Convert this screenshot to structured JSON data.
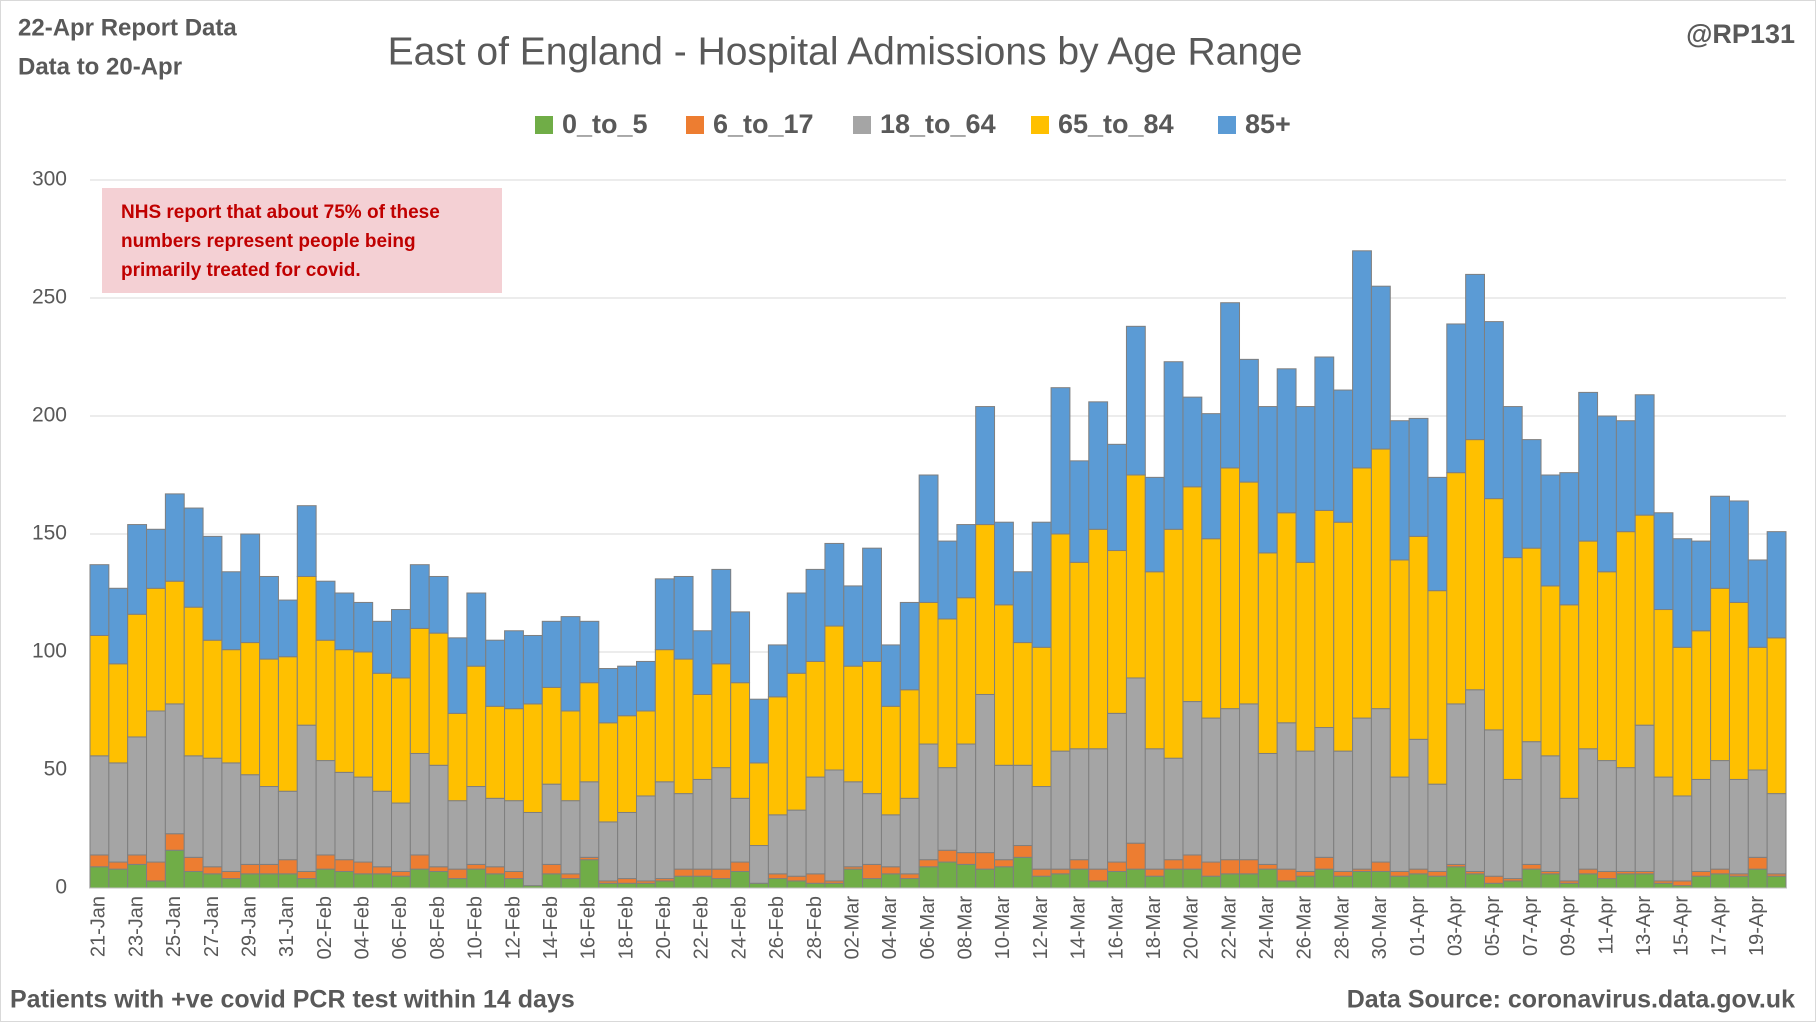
{
  "chart_data": {
    "type": "bar",
    "stacked": true,
    "title": "East of England - Hospital Admissions by Age Range",
    "report_date": "22-Apr Report Data",
    "data_to": "Data to 20-Apr",
    "author": "@RP131",
    "annotation": [
      "NHS report that about 75% of these",
      "numbers represent people being",
      "primarily treated for covid."
    ],
    "footnote": "Patients with  +ve covid PCR test within 14 days",
    "source": "Data Source: coronavirus.data.gov.uk",
    "categories": [
      "21-Jan",
      null,
      "23-Jan",
      null,
      "25-Jan",
      null,
      "27-Jan",
      null,
      "29-Jan",
      null,
      "31-Jan",
      null,
      "02-Feb",
      null,
      "04-Feb",
      null,
      "06-Feb",
      null,
      "08-Feb",
      null,
      "10-Feb",
      null,
      "12-Feb",
      null,
      "14-Feb",
      null,
      "16-Feb",
      null,
      "18-Feb",
      null,
      "20-Feb",
      null,
      "22-Feb",
      null,
      "24-Feb",
      null,
      "26-Feb",
      null,
      "28-Feb",
      null,
      "02-Mar",
      null,
      "04-Mar",
      null,
      "06-Mar",
      null,
      "08-Mar",
      null,
      "10-Mar",
      null,
      "12-Mar",
      null,
      "14-Mar",
      null,
      "16-Mar",
      null,
      "18-Mar",
      null,
      "20-Mar",
      null,
      "22-Mar",
      null,
      "24-Mar",
      null,
      "26-Mar",
      null,
      "28-Mar",
      null,
      "30-Mar",
      null,
      "01-Apr",
      null,
      "03-Apr",
      null,
      "05-Apr",
      null,
      "07-Apr",
      null,
      "09-Apr",
      null,
      "11-Apr",
      null,
      "13-Apr",
      null,
      "15-Apr",
      null,
      "17-Apr",
      null,
      "19-Apr",
      null
    ],
    "series": [
      {
        "name": "0_to_5",
        "color": "#70ad47",
        "values": [
          9,
          8,
          10,
          3,
          16,
          7,
          6,
          4,
          6,
          6,
          6,
          4,
          8,
          7,
          6,
          6,
          5,
          8,
          7,
          4,
          8,
          6,
          4,
          1,
          6,
          4,
          12,
          2,
          2,
          2,
          3,
          5,
          5,
          4,
          7,
          2,
          4,
          3,
          2,
          2,
          8,
          4,
          6,
          4,
          9,
          11,
          10,
          8,
          9,
          13,
          5,
          6,
          8,
          3,
          7,
          8,
          5,
          8,
          8,
          5,
          6,
          6,
          8,
          3,
          5,
          8,
          5,
          7,
          7,
          5,
          6,
          5,
          9,
          6,
          2,
          3,
          8,
          6,
          2,
          6,
          4,
          6,
          6,
          2,
          1,
          5,
          6,
          5,
          8,
          5
        ]
      },
      {
        "name": "6_to_17",
        "color": "#ed7d31",
        "values": [
          5,
          3,
          4,
          8,
          7,
          6,
          3,
          3,
          4,
          4,
          6,
          3,
          6,
          5,
          5,
          3,
          2,
          6,
          2,
          4,
          2,
          3,
          3,
          0,
          4,
          2,
          1,
          1,
          2,
          1,
          1,
          3,
          3,
          4,
          4,
          0,
          2,
          2,
          4,
          1,
          1,
          6,
          3,
          2,
          3,
          5,
          5,
          7,
          3,
          5,
          3,
          2,
          4,
          5,
          4,
          11,
          3,
          4,
          6,
          6,
          6,
          6,
          2,
          5,
          2,
          5,
          2,
          1,
          4,
          2,
          2,
          2,
          1,
          1,
          3,
          1,
          2,
          1,
          1,
          2,
          3,
          1,
          1,
          1,
          2,
          2,
          2,
          1,
          5,
          1
        ]
      },
      {
        "name": "18_to_64",
        "color": "#a5a5a5",
        "values": [
          42,
          42,
          50,
          64,
          55,
          43,
          46,
          46,
          38,
          33,
          29,
          62,
          40,
          37,
          36,
          32,
          29,
          43,
          43,
          29,
          33,
          29,
          30,
          31,
          34,
          31,
          32,
          25,
          28,
          36,
          41,
          32,
          38,
          43,
          27,
          16,
          25,
          28,
          41,
          47,
          36,
          30,
          22,
          32,
          49,
          35,
          46,
          67,
          40,
          34,
          35,
          50,
          47,
          51,
          63,
          70,
          51,
          43,
          65,
          61,
          64,
          66,
          47,
          62,
          51,
          55,
          51,
          64,
          65,
          40,
          55,
          37,
          68,
          77,
          62,
          42,
          52,
          49,
          35,
          51,
          47,
          44,
          62,
          44,
          36,
          39,
          46,
          40,
          37,
          34
        ]
      },
      {
        "name": "65_to_84",
        "color": "#ffc000",
        "values": [
          51,
          42,
          52,
          52,
          52,
          63,
          50,
          48,
          56,
          54,
          57,
          63,
          51,
          52,
          53,
          50,
          53,
          53,
          56,
          37,
          51,
          39,
          39,
          46,
          41,
          38,
          42,
          42,
          41,
          36,
          56,
          57,
          36,
          44,
          49,
          35,
          50,
          58,
          49,
          61,
          49,
          56,
          46,
          46,
          60,
          63,
          62,
          72,
          68,
          52,
          59,
          92,
          79,
          93,
          69,
          86,
          75,
          97,
          91,
          76,
          102,
          94,
          85,
          89,
          80,
          92,
          97,
          106,
          110,
          92,
          86,
          82,
          98,
          106,
          98,
          94,
          82,
          72,
          82,
          88,
          80,
          100,
          89,
          71,
          63,
          63,
          73,
          75,
          52,
          66
        ]
      },
      {
        "name": "85+",
        "color": "#5b9bd5",
        "values": [
          30,
          32,
          38,
          25,
          37,
          42,
          44,
          33,
          46,
          35,
          24,
          30,
          25,
          24,
          21,
          22,
          29,
          27,
          24,
          32,
          31,
          28,
          33,
          29,
          28,
          40,
          26,
          23,
          21,
          21,
          30,
          35,
          27,
          40,
          30,
          27,
          22,
          34,
          39,
          35,
          34,
          48,
          26,
          37,
          54,
          33,
          31,
          50,
          35,
          30,
          53,
          62,
          43,
          54,
          45,
          63,
          40,
          71,
          38,
          53,
          70,
          52,
          62,
          61,
          66,
          65,
          56,
          92,
          69,
          59,
          50,
          48,
          63,
          70,
          75,
          64,
          46,
          47,
          56,
          63,
          66,
          47,
          51,
          41,
          46,
          38,
          39,
          43,
          37,
          45
        ]
      }
    ],
    "ylim": [
      0,
      300
    ],
    "yticks": [
      0,
      50,
      100,
      150,
      200,
      250,
      300
    ],
    "grid": true,
    "legend": "top"
  }
}
